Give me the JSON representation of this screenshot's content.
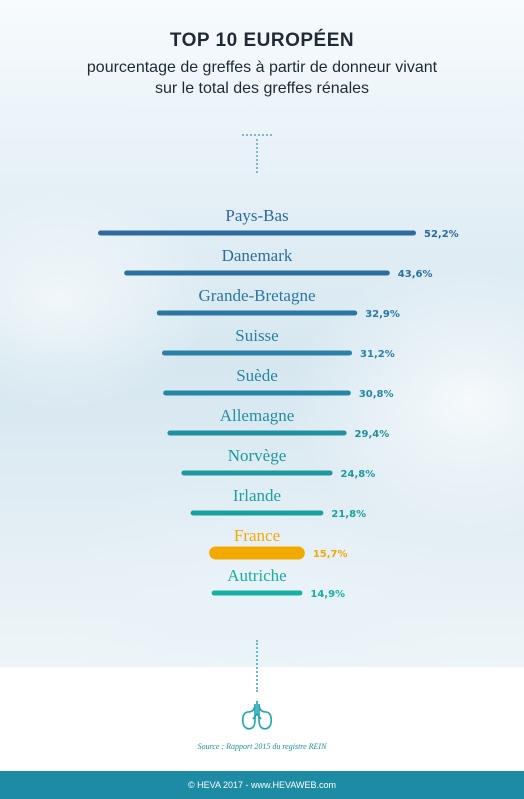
{
  "header": {
    "title": "TOP 10 EUROPÉEN",
    "subtitle_line1": "pourcentage de greffes à partir de donneur vivant",
    "subtitle_line2": "sur le total des greffes rénales"
  },
  "chart_data": {
    "type": "bar",
    "orientation": "horizontal-centered",
    "categories": [
      "Pays-Bas",
      "Danemark",
      "Grande-Bretagne",
      "Suisse",
      "Suède",
      "Allemagne",
      "Norvège",
      "Irlande",
      "France",
      "Autriche"
    ],
    "values": [
      52.2,
      43.6,
      32.9,
      31.2,
      30.8,
      29.4,
      24.8,
      21.8,
      15.7,
      14.9
    ],
    "value_labels": [
      "52,2%",
      "43,6%",
      "32,9%",
      "31,2%",
      "30,8%",
      "29,4%",
      "24,8%",
      "21,8%",
      "15,7%",
      "14,9%"
    ],
    "colors": [
      "#2d6aa0",
      "#2b6fa0",
      "#2a77a3",
      "#2a80a6",
      "#2586a6",
      "#21909f",
      "#1d989f",
      "#19a19f",
      "#f2a900",
      "#17b0a3"
    ],
    "highlight": "France",
    "grid": false,
    "legend": "none"
  },
  "icons": {
    "kidney": "kidney-icon"
  },
  "source": "Source : Rapport 2015 du registre REIN",
  "footer": "© HEVA 2017 - www.HEVAWEB.com"
}
